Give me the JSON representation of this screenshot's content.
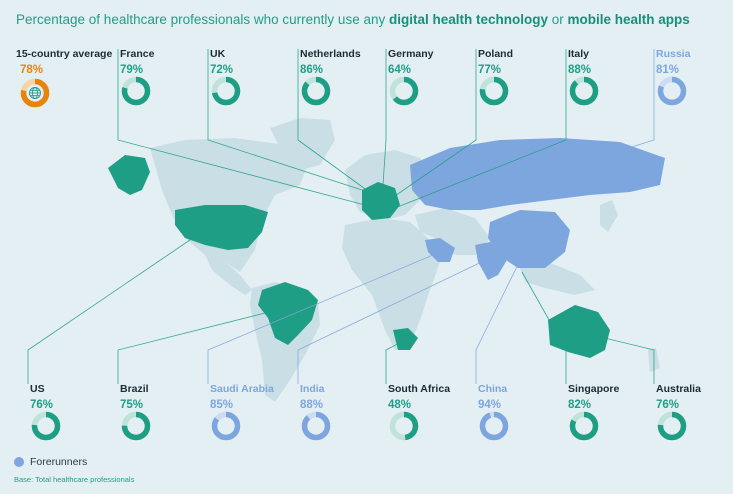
{
  "title": {
    "part1": "Percentage of healthcare professionals who currently use any ",
    "bold1": "digital health technology",
    "part2": " or ",
    "bold2": "mobile health apps"
  },
  "legend": {
    "label": "Forerunners",
    "color": "#7ea6de"
  },
  "footnote": "Base: Total healthcare professionals",
  "colors": {
    "standard": "#1f9e86",
    "forerunner": "#7ea6de",
    "average": "#e8830c",
    "land": "#c9dfe5",
    "track_standard": "#bfe3da",
    "track_forerunner": "#cddcf3",
    "track_average": "#f7d3a8"
  },
  "chart_data": {
    "type": "donut-map",
    "title": "Percentage of healthcare professionals who currently use any digital health technology or mobile health apps",
    "units": "%",
    "average": {
      "name": "15-country average",
      "value": 78,
      "icon": "globe-icon"
    },
    "countries": [
      {
        "name": "France",
        "value": 79,
        "forerunner": false
      },
      {
        "name": "UK",
        "value": 72,
        "forerunner": false
      },
      {
        "name": "Netherlands",
        "value": 86,
        "forerunner": false
      },
      {
        "name": "Germany",
        "value": 64,
        "forerunner": false
      },
      {
        "name": "Poland",
        "value": 77,
        "forerunner": false
      },
      {
        "name": "Italy",
        "value": 88,
        "forerunner": false
      },
      {
        "name": "Russia",
        "value": 81,
        "forerunner": true
      },
      {
        "name": "US",
        "value": 76,
        "forerunner": false
      },
      {
        "name": "Brazil",
        "value": 75,
        "forerunner": false
      },
      {
        "name": "Saudi Arabia",
        "value": 85,
        "forerunner": true
      },
      {
        "name": "India",
        "value": 88,
        "forerunner": true
      },
      {
        "name": "South Africa",
        "value": 48,
        "forerunner": false
      },
      {
        "name": "China",
        "value": 94,
        "forerunner": true
      },
      {
        "name": "Singapore",
        "value": 82,
        "forerunner": false
      },
      {
        "name": "Australia",
        "value": 76,
        "forerunner": false
      }
    ]
  }
}
